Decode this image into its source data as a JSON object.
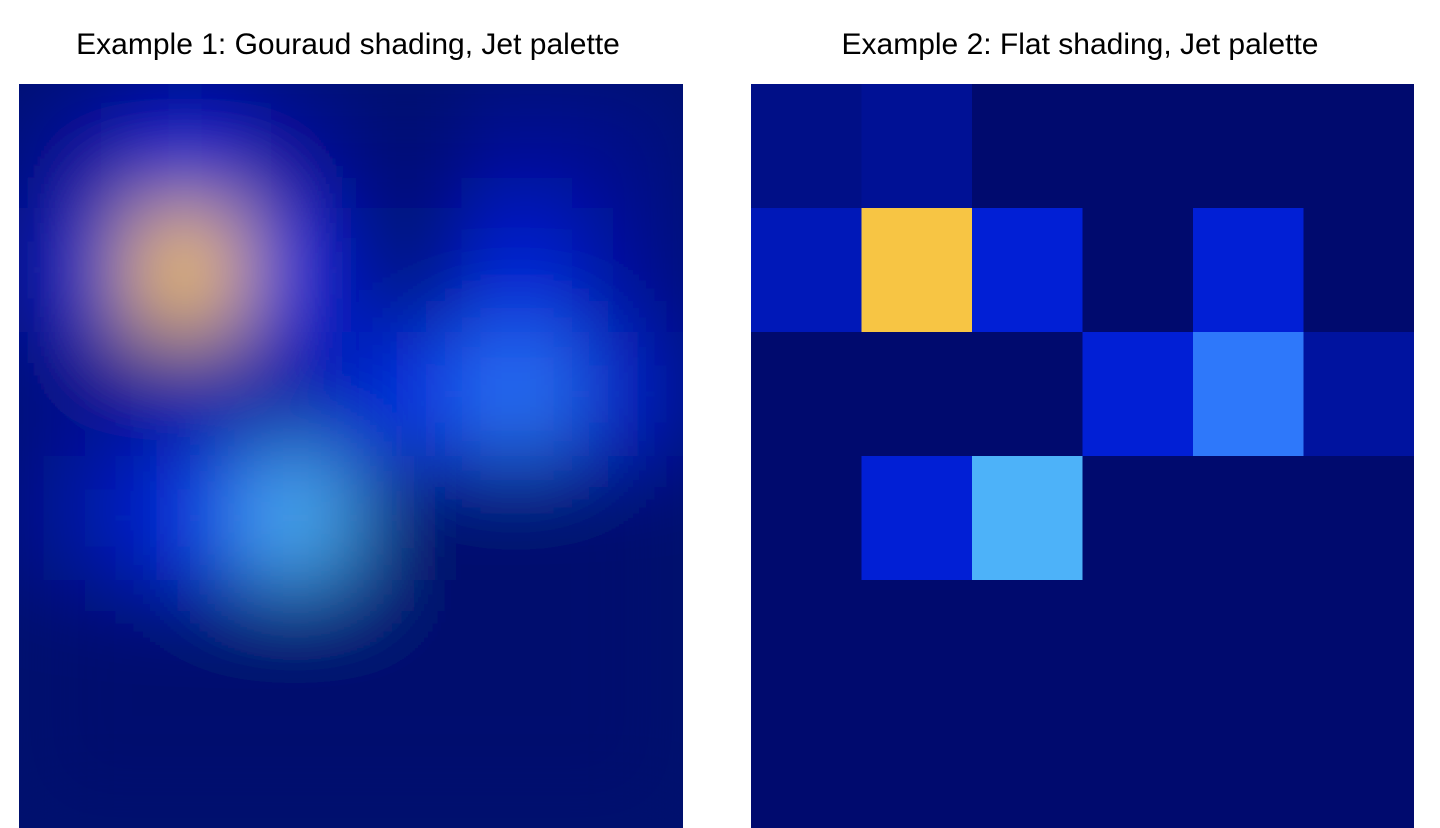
{
  "chart_data": [
    {
      "type": "heatmap",
      "title": "Example 1: Gouraud shading, Jet palette",
      "shading": "gouraud",
      "palette": "jet",
      "colors": {
        "background": "#000a6e",
        "jet_stops": [
          "#000a6e",
          "#001cd0",
          "#0a3cff",
          "#3a8cf8",
          "#5acbfa",
          "#f7c544"
        ]
      },
      "values": [
        [
          0.08,
          0.2,
          0.08,
          0.0,
          0.08,
          0.05
        ],
        [
          0.18,
          1.0,
          0.25,
          0.0,
          0.25,
          0.08
        ],
        [
          0.06,
          0.1,
          0.1,
          0.28,
          0.55,
          0.18
        ],
        [
          0.1,
          0.28,
          0.72,
          0.0,
          0.0,
          0.0
        ],
        [
          0.0,
          0.0,
          0.0,
          0.0,
          0.0,
          0.0
        ],
        [
          0.0,
          0.0,
          0.0,
          0.0,
          0.0,
          0.0
        ]
      ]
    },
    {
      "type": "heatmap",
      "title": "Example 2: Flat shading, Jet palette",
      "shading": "flat",
      "palette": "jet",
      "colors": {
        "background": "#000a6e",
        "jet_stops": [
          "#000a6e",
          "#001cd0",
          "#0a3cff",
          "#3a8cf8",
          "#5acbfa",
          "#f7c544"
        ]
      },
      "values": [
        [
          0.05,
          0.08,
          0.0,
          0.0,
          0.0,
          0.0
        ],
        [
          0.15,
          1.0,
          0.22,
          0.0,
          0.22,
          0.0
        ],
        [
          0.0,
          0.0,
          0.0,
          0.22,
          0.55,
          0.1
        ],
        [
          0.0,
          0.22,
          0.72,
          0.0,
          0.0,
          0.0
        ],
        [
          0.0,
          0.0,
          0.0,
          0.0,
          0.0,
          0.0
        ],
        [
          0.0,
          0.0,
          0.0,
          0.0,
          0.0,
          0.0
        ]
      ]
    }
  ]
}
